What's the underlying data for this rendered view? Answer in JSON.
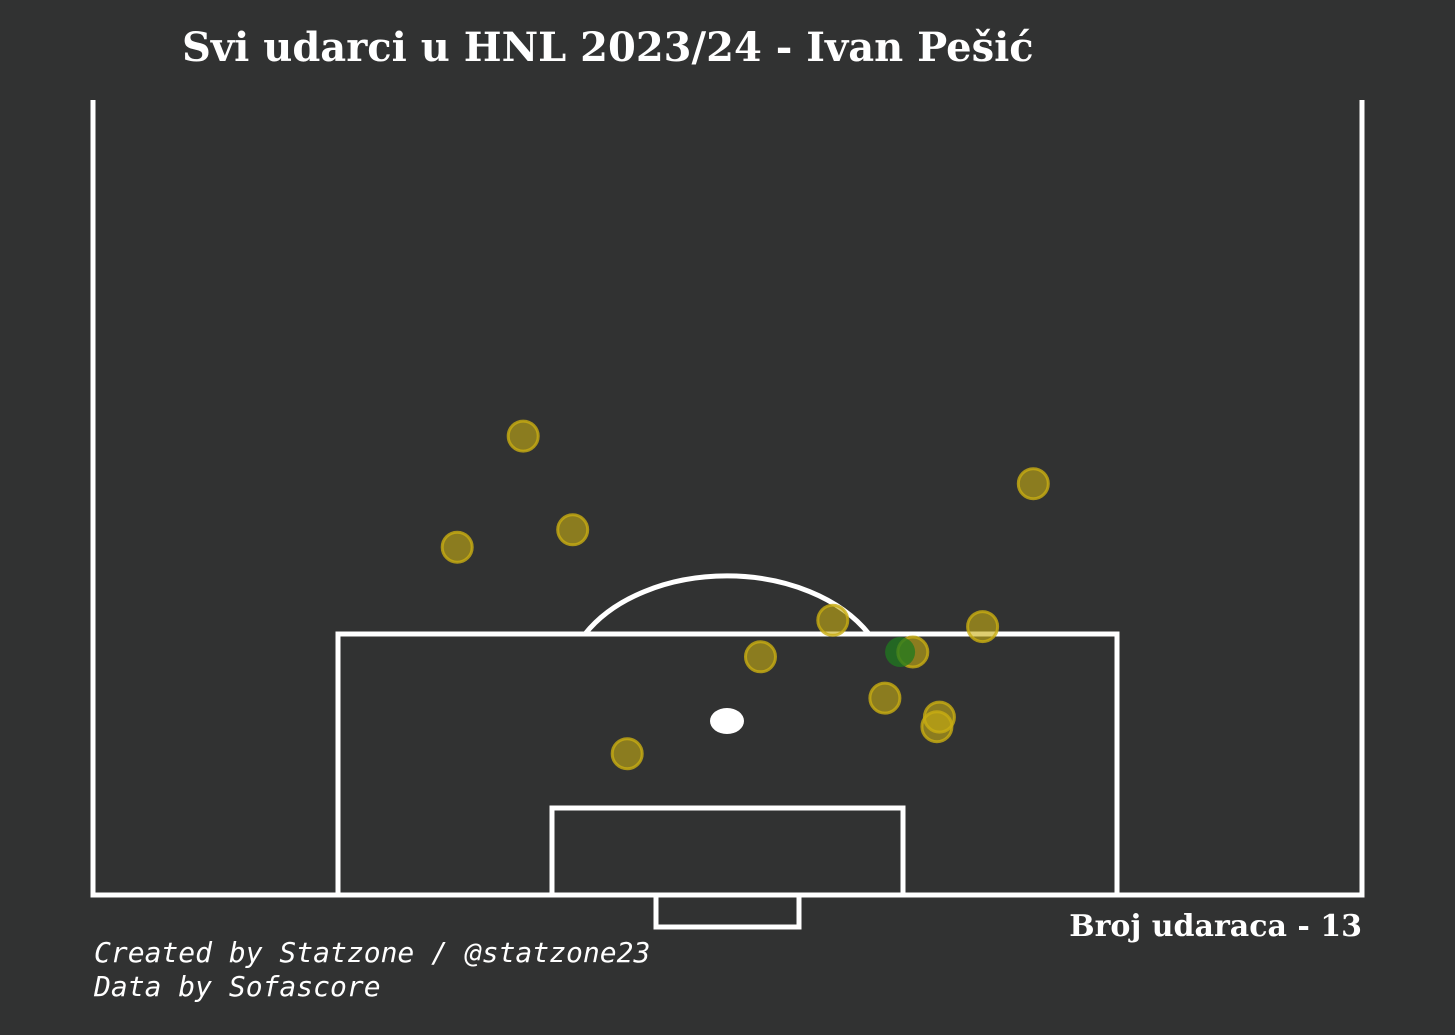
{
  "title": "Svi udarci u HNL 2023/24 - Ivan Pešić",
  "shot_count_label": "Broj udaraca - 13",
  "credits": {
    "line1": "Created by Statzone / @statzone23",
    "line2": "Data by Sofascore"
  },
  "colors": {
    "background": "#313232",
    "lines": "#ffffff",
    "shot": "#c8ad12",
    "goal": "#1f7a1f",
    "ball": "#ffffff"
  },
  "chart_data": {
    "type": "scatter",
    "title": "Svi udarci u HNL 2023/24 - Ivan Pešić",
    "pitch_view": "vertical half, attacking goal at bottom",
    "units": "Sofascore pitch coordinates: x = distance from goal line (0-100 over full pitch length), y = across pitch width (0-100)",
    "grid": false,
    "series": [
      {
        "outcome": "shot",
        "points": [
          {
            "x": 28.9,
            "y": 33.9
          },
          {
            "x": 23.0,
            "y": 37.8
          },
          {
            "x": 21.9,
            "y": 28.7
          },
          {
            "x": 25.9,
            "y": 74.1
          },
          {
            "x": 17.3,
            "y": 58.3
          },
          {
            "x": 16.9,
            "y": 70.1
          },
          {
            "x": 15.3,
            "y": 64.6
          },
          {
            "x": 15.0,
            "y": 52.6
          },
          {
            "x": 12.4,
            "y": 62.4
          },
          {
            "x": 11.2,
            "y": 66.7
          },
          {
            "x": 10.6,
            "y": 66.5
          },
          {
            "x": 8.9,
            "y": 42.1
          }
        ]
      },
      {
        "outcome": "goal",
        "points": [
          {
            "x": 15.3,
            "y": 63.6
          }
        ]
      }
    ],
    "total_shots": 13
  }
}
